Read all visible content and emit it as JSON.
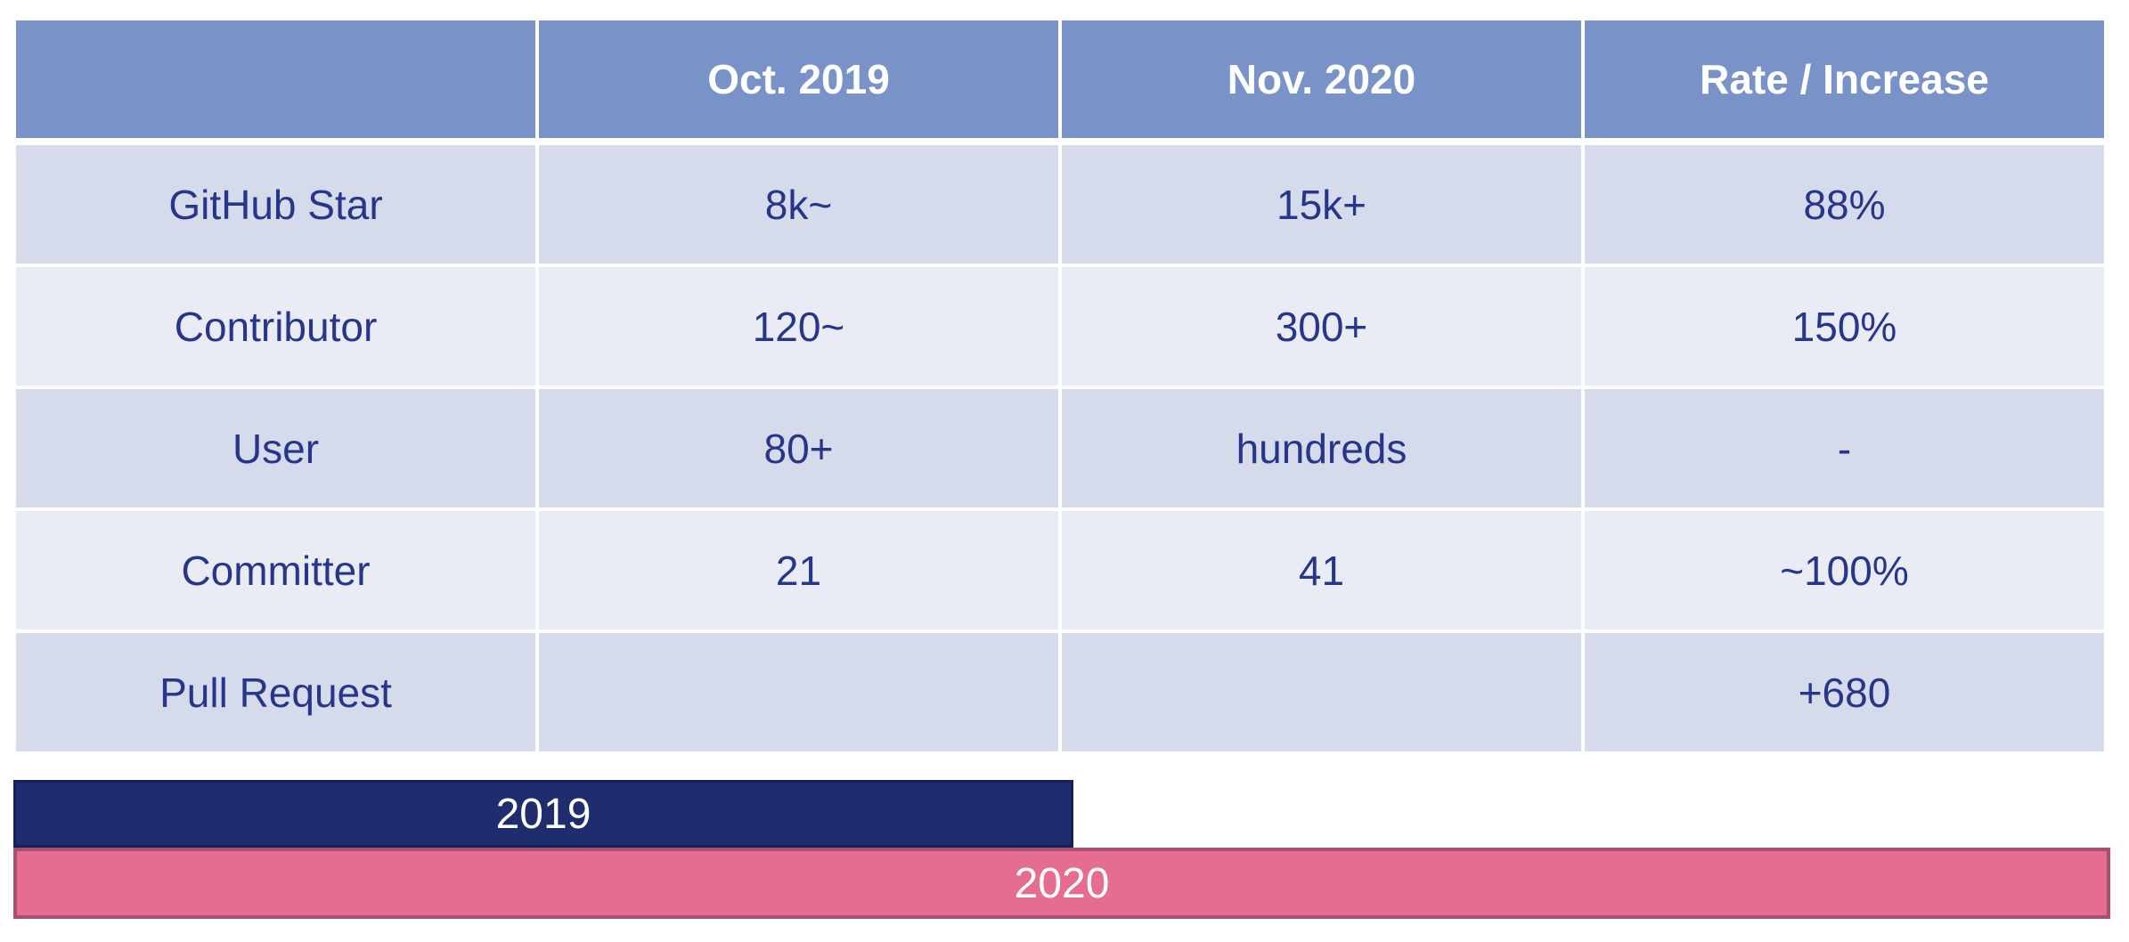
{
  "table": {
    "columns": [
      "Oct. 2019",
      "Nov. 2020",
      "Rate / Increase"
    ],
    "rows": [
      {
        "label": "GitHub Star",
        "cells": [
          "8k~",
          "15k+",
          "88%"
        ]
      },
      {
        "label": "Contributor",
        "cells": [
          "120~",
          "300+",
          "150%"
        ]
      },
      {
        "label": "User",
        "cells": [
          "80+",
          "hundreds",
          "-"
        ]
      },
      {
        "label": "Committer",
        "cells": [
          "21",
          "41",
          "~100%"
        ]
      },
      {
        "label": "Pull Request",
        "cells": [
          null,
          null,
          "+680"
        ]
      }
    ]
  },
  "timeline": [
    {
      "label": "2019"
    },
    {
      "label": "2020"
    }
  ]
}
